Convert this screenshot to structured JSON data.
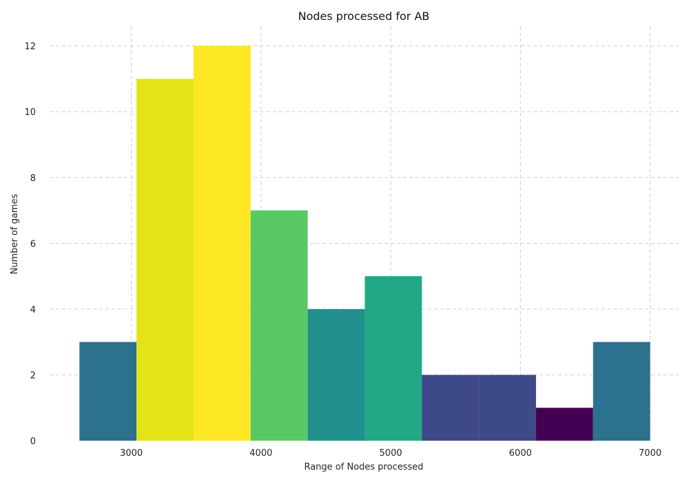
{
  "chart_data": {
    "type": "bar",
    "title": "Nodes processed for AB",
    "xlabel": "Range of Nodes processed",
    "ylabel": "Number of games",
    "xlim": [
      2370,
      7220
    ],
    "ylim": [
      0,
      12.6
    ],
    "grid": true,
    "bin_edges": [
      2600,
      3040,
      3480,
      3920,
      4360,
      4800,
      5240,
      5680,
      6120,
      6560,
      7000
    ],
    "values": [
      3,
      11,
      12,
      7,
      4,
      5,
      2,
      2,
      1,
      3
    ],
    "bar_colors": [
      "#2c718e",
      "#e2e418",
      "#fde725",
      "#5ac864",
      "#21908d",
      "#22a884",
      "#3e4989",
      "#3e4989",
      "#440154",
      "#2c718e"
    ],
    "x_ticks": [
      3000,
      4000,
      5000,
      6000,
      7000
    ],
    "x_tick_labels": [
      "3000",
      "4000",
      "5000",
      "6000",
      "7000"
    ],
    "y_ticks": [
      0,
      2,
      4,
      6,
      8,
      10,
      12
    ],
    "y_tick_labels": [
      "0",
      "2",
      "4",
      "6",
      "8",
      "10",
      "12"
    ]
  }
}
